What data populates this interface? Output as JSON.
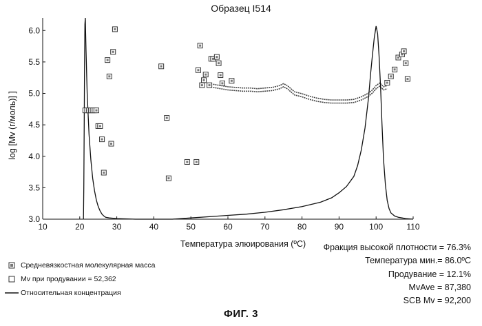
{
  "chart_data": {
    "type": "scatter",
    "title": "Образец I514",
    "xlabel": "Температура элюирования (ºC)",
    "ylabel": "log [Mv (г/моль)] ]",
    "xlim": [
      10,
      110
    ],
    "ylim": [
      3.0,
      6.2
    ],
    "xticks": [
      "10",
      "20",
      "30",
      "40",
      "50",
      "60",
      "70",
      "80",
      "90",
      "100",
      "110"
    ],
    "yticks": [
      "3.0",
      "3.5",
      "4.0",
      "4.5",
      "5.0",
      "5.5",
      "6.0"
    ],
    "series": [
      {
        "name": "Средневязкостная молекулярная масса",
        "kind": "scatter-filled",
        "points": [
          [
            21.5,
            4.73
          ],
          [
            22,
            4.73
          ],
          [
            22.5,
            4.73
          ],
          [
            23,
            4.73
          ],
          [
            23.5,
            4.73
          ],
          [
            24,
            4.73
          ],
          [
            24.5,
            4.73
          ],
          [
            25,
            4.48
          ],
          [
            25.5,
            4.48
          ],
          [
            26,
            4.27
          ],
          [
            26.5,
            3.74
          ],
          [
            27.5,
            5.53
          ],
          [
            28,
            5.27
          ],
          [
            28.5,
            4.2
          ],
          [
            29,
            5.66
          ],
          [
            29.5,
            6.02
          ],
          [
            42,
            5.43
          ],
          [
            43.5,
            4.61
          ],
          [
            44,
            3.65
          ],
          [
            49,
            3.91
          ],
          [
            51.5,
            3.91
          ],
          [
            52,
            5.37
          ],
          [
            52.5,
            5.76
          ],
          [
            53,
            5.13
          ],
          [
            53.5,
            5.21
          ],
          [
            54,
            5.3
          ],
          [
            55,
            5.13
          ],
          [
            55.5,
            5.55
          ],
          [
            56,
            5.55
          ],
          [
            57,
            5.58
          ],
          [
            57.5,
            5.48
          ],
          [
            58,
            5.29
          ],
          [
            58.5,
            5.16
          ],
          [
            61,
            5.2
          ],
          [
            103,
            5.17
          ],
          [
            104,
            5.27
          ],
          [
            105,
            5.38
          ],
          [
            106,
            5.57
          ],
          [
            107,
            5.62
          ],
          [
            107.5,
            5.67
          ],
          [
            108,
            5.48
          ],
          [
            108.5,
            5.23
          ]
        ]
      },
      {
        "name": "Mv при продувании = 52,362",
        "kind": "scatter-open",
        "points": []
      },
      {
        "name": "Относительная концентрация",
        "kind": "line",
        "points": [
          [
            21,
            3.0
          ],
          [
            21.1,
            3.5
          ],
          [
            21.2,
            4.5
          ],
          [
            21.3,
            5.5
          ],
          [
            21.4,
            6.1
          ],
          [
            21.5,
            6.2
          ],
          [
            21.7,
            5.7
          ],
          [
            22,
            5.0
          ],
          [
            22.5,
            4.35
          ],
          [
            23,
            3.95
          ],
          [
            23.5,
            3.65
          ],
          [
            24,
            3.45
          ],
          [
            24.5,
            3.3
          ],
          [
            25,
            3.2
          ],
          [
            25.5,
            3.13
          ],
          [
            26,
            3.08
          ],
          [
            26.5,
            3.05
          ],
          [
            27,
            3.03
          ],
          [
            28,
            3.02
          ],
          [
            30,
            3.01
          ],
          [
            35,
            3.0
          ],
          [
            45,
            3.0
          ],
          [
            50,
            3.02
          ],
          [
            55,
            3.04
          ],
          [
            60,
            3.06
          ],
          [
            65,
            3.08
          ],
          [
            70,
            3.11
          ],
          [
            75,
            3.15
          ],
          [
            80,
            3.2
          ],
          [
            85,
            3.27
          ],
          [
            88,
            3.34
          ],
          [
            90,
            3.42
          ],
          [
            92,
            3.52
          ],
          [
            94,
            3.68
          ],
          [
            95,
            3.85
          ],
          [
            96,
            4.1
          ],
          [
            97,
            4.45
          ],
          [
            98,
            4.95
          ],
          [
            98.5,
            5.3
          ],
          [
            99,
            5.6
          ],
          [
            99.5,
            5.88
          ],
          [
            100,
            6.07
          ],
          [
            100.4,
            5.95
          ],
          [
            100.8,
            5.6
          ],
          [
            101.2,
            5.1
          ],
          [
            101.6,
            4.5
          ],
          [
            102,
            3.95
          ],
          [
            102.5,
            3.55
          ],
          [
            103,
            3.3
          ],
          [
            103.5,
            3.17
          ],
          [
            104,
            3.1
          ],
          [
            105,
            3.05
          ],
          [
            106,
            3.03
          ],
          [
            107,
            3.02
          ],
          [
            108,
            3.01
          ],
          [
            110,
            3.0
          ]
        ]
      }
    ],
    "mv_band": [
      [
        56,
        5.12
      ],
      [
        58,
        5.1
      ],
      [
        60,
        5.08
      ],
      [
        62,
        5.07
      ],
      [
        64,
        5.06
      ],
      [
        66,
        5.06
      ],
      [
        68,
        5.05
      ],
      [
        70,
        5.06
      ],
      [
        72,
        5.07
      ],
      [
        74,
        5.1
      ],
      [
        75,
        5.13
      ],
      [
        76,
        5.1
      ],
      [
        78,
        5.0
      ],
      [
        80,
        4.97
      ],
      [
        82,
        4.93
      ],
      [
        84,
        4.9
      ],
      [
        86,
        4.88
      ],
      [
        88,
        4.87
      ],
      [
        90,
        4.87
      ],
      [
        92,
        4.87
      ],
      [
        94,
        4.88
      ],
      [
        96,
        4.92
      ],
      [
        98,
        4.98
      ],
      [
        99,
        5.03
      ],
      [
        100,
        5.1
      ],
      [
        101,
        5.14
      ],
      [
        102,
        5.08
      ],
      [
        103,
        5.1
      ]
    ],
    "legend": {
      "items": [
        {
          "label": "Средневязкостная молекулярная масса",
          "mark": "filled-square"
        },
        {
          "label": "Mv  при продувании = 52,362",
          "mark": "open-square"
        },
        {
          "label": "Относительная концентрация",
          "mark": "line"
        }
      ]
    },
    "stats": [
      "Фракция высокой плотности = 76.3%",
      "Температура мин.= 86.0ºC",
      "Продувание = 12.1%",
      "MvAve = 87,380",
      "SCB Mv = 92,200"
    ],
    "figure_caption": "ФИГ. 3"
  }
}
